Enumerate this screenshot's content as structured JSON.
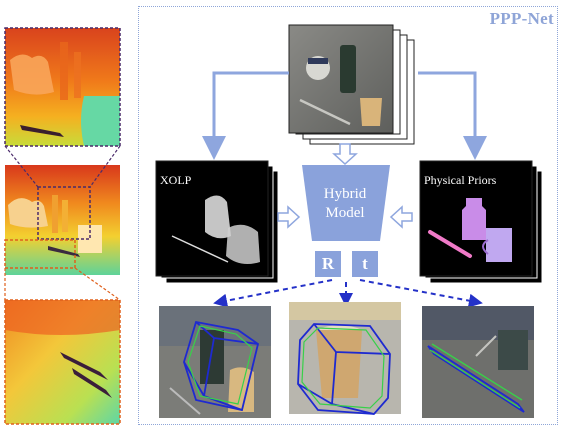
{
  "title": "PPP-Net",
  "xolp_label": "XOLP",
  "priors_label": "Physical Priors",
  "model_label_line1": "Hybrid",
  "model_label_line2": "Model",
  "rotation_label": "R",
  "translation_label": "t",
  "colors": {
    "accent": "#8aa2db",
    "arrow": "#8ea6de",
    "pose_arrow": "#2431c8",
    "zoom_top": "#4a2a6a",
    "zoom_bottom": "#e0601c",
    "frame": "#8fa6d8"
  }
}
